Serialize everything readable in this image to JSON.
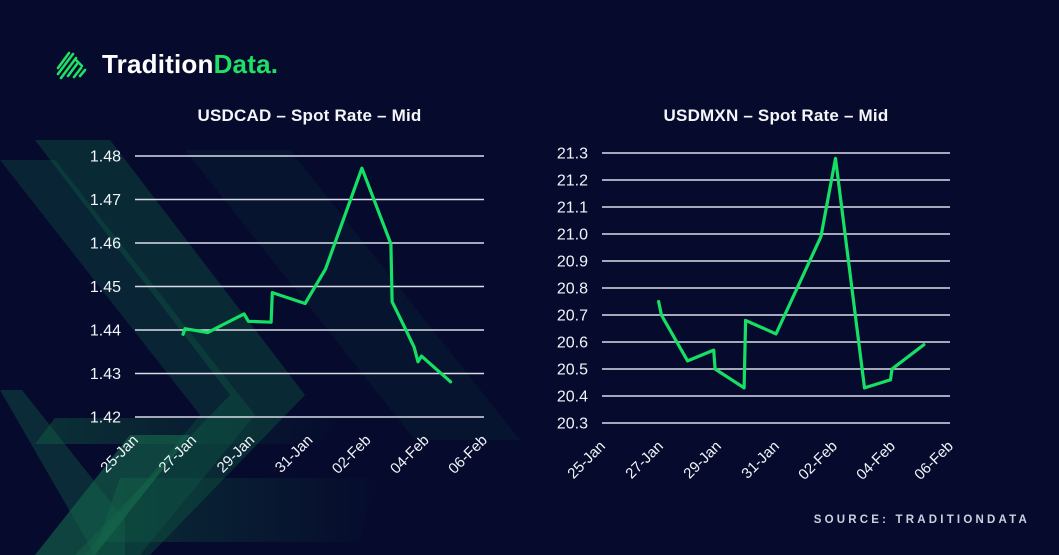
{
  "page": {
    "background_color": "#060b2d",
    "accent_green": "#15e065"
  },
  "logo": {
    "brand_white": "Tradition",
    "brand_green": "Data.",
    "icon": "tradition-stripes-icon",
    "icon_color": "#1fe065"
  },
  "footer": {
    "source": "SOURCE: TRADITIONDATA"
  },
  "chart_data": [
    {
      "type": "line",
      "title": "USDCAD – Spot Rate – Mid",
      "x_tick_labels": [
        "25-Jan",
        "27-Jan",
        "29-Jan",
        "31-Jan",
        "02-Feb",
        "04-Feb",
        "06-Feb"
      ],
      "x_tick_values": [
        0,
        2,
        4,
        6,
        8,
        10,
        12
      ],
      "xlim": [
        0,
        12
      ],
      "x_unit": "days since 25-Jan",
      "y_tick_labels": [
        "1.42",
        "1.43",
        "1.44",
        "1.45",
        "1.46",
        "1.47",
        "1.48"
      ],
      "ylim": [
        1.42,
        1.48
      ],
      "grid": true,
      "legend": false,
      "gridline_color": "#d9dce7",
      "label_color": "#f2f4f9",
      "series": [
        {
          "name": "USDCAD Spot Rate Mid",
          "color": "#15e065",
          "points": [
            [
              1.65,
              1.439
            ],
            [
              1.72,
              1.4403
            ],
            [
              2.5,
              1.4394
            ],
            [
              3.1,
              1.4415
            ],
            [
              3.75,
              1.4437
            ],
            [
              3.9,
              1.442
            ],
            [
              4.68,
              1.4418
            ],
            [
              4.72,
              1.4486
            ],
            [
              5.85,
              1.4461
            ],
            [
              6.55,
              1.454
            ],
            [
              7.8,
              1.4772
            ],
            [
              8.8,
              1.4598
            ],
            [
              8.84,
              1.4465
            ],
            [
              9.3,
              1.4402
            ],
            [
              9.6,
              1.436
            ],
            [
              9.73,
              1.4327
            ],
            [
              9.85,
              1.434
            ],
            [
              10.85,
              1.4281
            ]
          ]
        }
      ]
    },
    {
      "type": "line",
      "title": "USDMXN – Spot Rate – Mid",
      "x_tick_labels": [
        "25-Jan",
        "27-Jan",
        "29-Jan",
        "31-Jan",
        "02-Feb",
        "04-Feb",
        "06-Feb"
      ],
      "x_tick_values": [
        0,
        2,
        4,
        6,
        8,
        10,
        12
      ],
      "xlim": [
        0,
        12
      ],
      "x_unit": "days since 25-Jan",
      "y_tick_labels": [
        "20.3",
        "20.4",
        "20.5",
        "20.6",
        "20.7",
        "20.8",
        "20.9",
        "21.0",
        "21.1",
        "21.2",
        "21.3"
      ],
      "ylim": [
        20.3,
        21.3
      ],
      "grid": true,
      "legend": false,
      "gridline_color": "#d9dce7",
      "label_color": "#f2f4f9",
      "series": [
        {
          "name": "USDMXN Spot Rate Mid",
          "color": "#15e065",
          "points": [
            [
              1.95,
              20.75
            ],
            [
              2.05,
              20.7
            ],
            [
              2.95,
              20.53
            ],
            [
              3.85,
              20.57
            ],
            [
              3.9,
              20.5
            ],
            [
              4.9,
              20.43
            ],
            [
              4.95,
              20.68
            ],
            [
              6.0,
              20.63
            ],
            [
              7.55,
              20.99
            ],
            [
              8.05,
              21.28
            ],
            [
              9.05,
              20.43
            ],
            [
              9.95,
              20.46
            ],
            [
              10.0,
              20.5
            ],
            [
              11.1,
              20.59
            ]
          ]
        }
      ]
    }
  ]
}
